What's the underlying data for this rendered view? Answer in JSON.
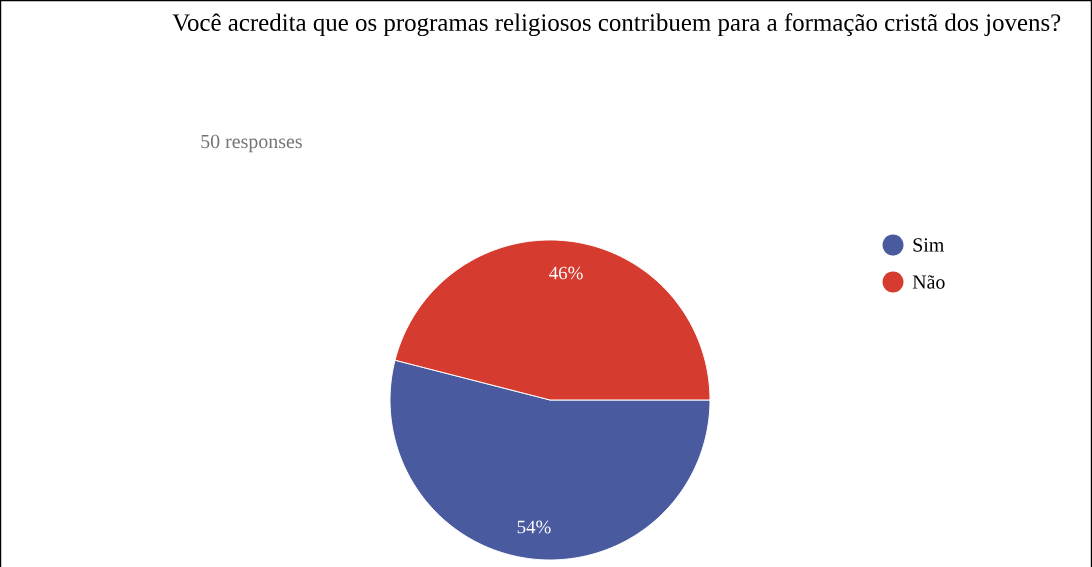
{
  "chart_data": {
    "type": "pie",
    "title": "Você acredita que os programas religiosos contribuem para a formação cristã dos jovens?",
    "subtitle": "50 responses",
    "categories": [
      "Sim",
      "Não"
    ],
    "values": [
      54,
      46
    ],
    "colors": [
      "#4a5a9f",
      "#d53b2e"
    ],
    "value_labels": [
      "54%",
      "46%"
    ],
    "legend": "right"
  }
}
